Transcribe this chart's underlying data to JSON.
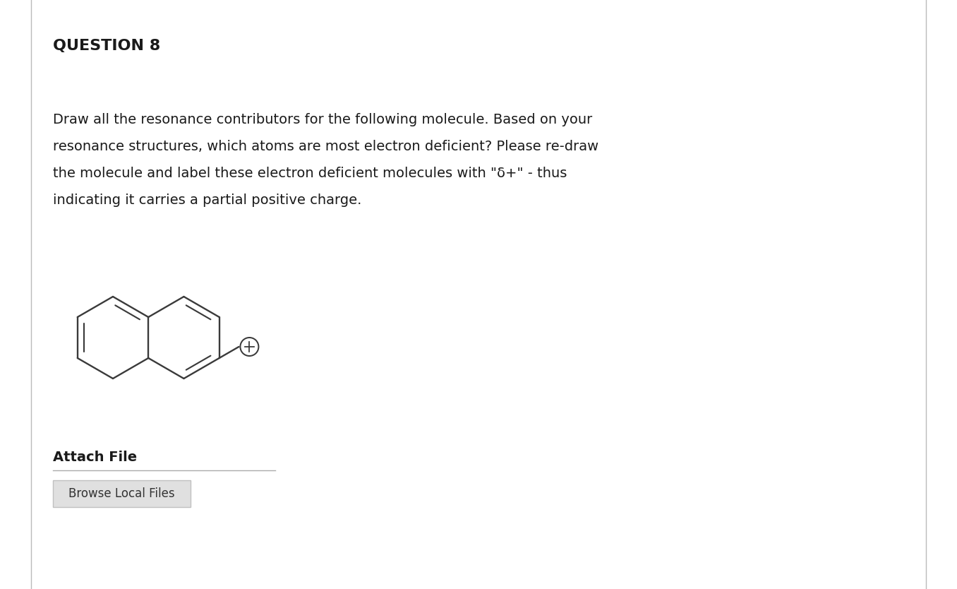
{
  "background_color": "#ffffff",
  "title": "QUESTION 8",
  "body_lines": [
    "Draw all the resonance contributors for the following molecule. Based on your",
    "resonance structures, which atoms are most electron deficient? Please re-draw",
    "the molecule and label these electron deficient molecules with \"δ+\" - thus",
    "indicating it carries a partial positive charge."
  ],
  "attach_label": "Attach File",
  "browse_label": "Browse Local Files",
  "line_color": "#3a3a3a",
  "line_width": 1.7,
  "border_color": "#bbbbbb"
}
